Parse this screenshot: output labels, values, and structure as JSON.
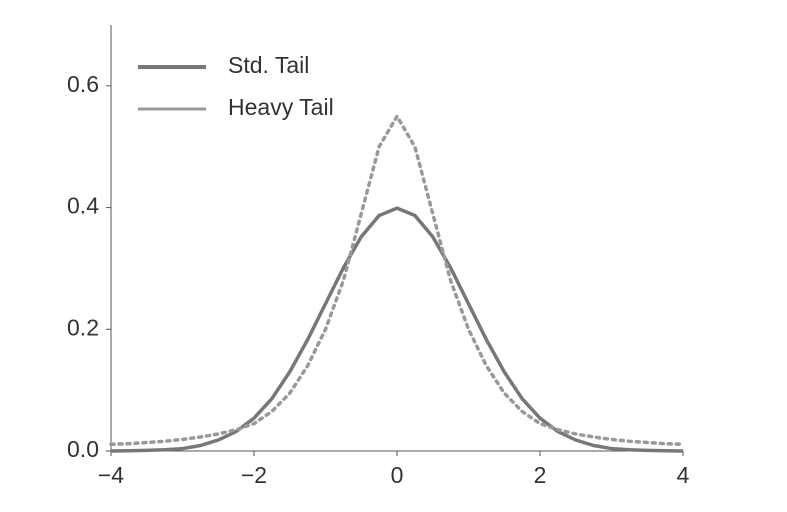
{
  "chart_data": {
    "type": "line",
    "x": [
      -4,
      -3.75,
      -3.5,
      -3.25,
      -3,
      -2.75,
      -2.5,
      -2.25,
      -2,
      -1.75,
      -1.5,
      -1.25,
      -1,
      -0.75,
      -0.5,
      -0.25,
      0,
      0.25,
      0.5,
      0.75,
      1,
      1.25,
      1.5,
      1.75,
      2,
      2.25,
      2.5,
      2.75,
      3,
      3.25,
      3.5,
      3.75,
      4
    ],
    "series": [
      {
        "name": "Std. Tail",
        "color": "#777777",
        "style": "solid",
        "values": [
          0.0001,
          0.0004,
          0.001,
          0.002,
          0.004,
          0.009,
          0.018,
          0.032,
          0.054,
          0.086,
          0.13,
          0.183,
          0.242,
          0.301,
          0.352,
          0.387,
          0.399,
          0.387,
          0.352,
          0.301,
          0.242,
          0.183,
          0.13,
          0.086,
          0.054,
          0.032,
          0.018,
          0.009,
          0.004,
          0.002,
          0.001,
          0.0004,
          0.0001
        ]
      },
      {
        "name": "Heavy Tail",
        "color": "#999999",
        "style": "dotted",
        "values": [
          0.011,
          0.012,
          0.014,
          0.016,
          0.019,
          0.023,
          0.028,
          0.035,
          0.045,
          0.065,
          0.095,
          0.14,
          0.2,
          0.28,
          0.39,
          0.5,
          0.55,
          0.5,
          0.39,
          0.28,
          0.2,
          0.14,
          0.095,
          0.065,
          0.045,
          0.035,
          0.028,
          0.023,
          0.019,
          0.016,
          0.014,
          0.012,
          0.011
        ]
      }
    ],
    "xlim": [
      -4,
      4
    ],
    "xticks": [
      {
        "value": -4,
        "label": "−4"
      },
      {
        "value": -2,
        "label": "−2"
      },
      0,
      2,
      4
    ],
    "ylim": [
      0,
      0.7
    ],
    "yticks": [
      {
        "value": 0,
        "label": "0.0"
      },
      0.2,
      0.4,
      0.6
    ],
    "legend": "upper left"
  }
}
